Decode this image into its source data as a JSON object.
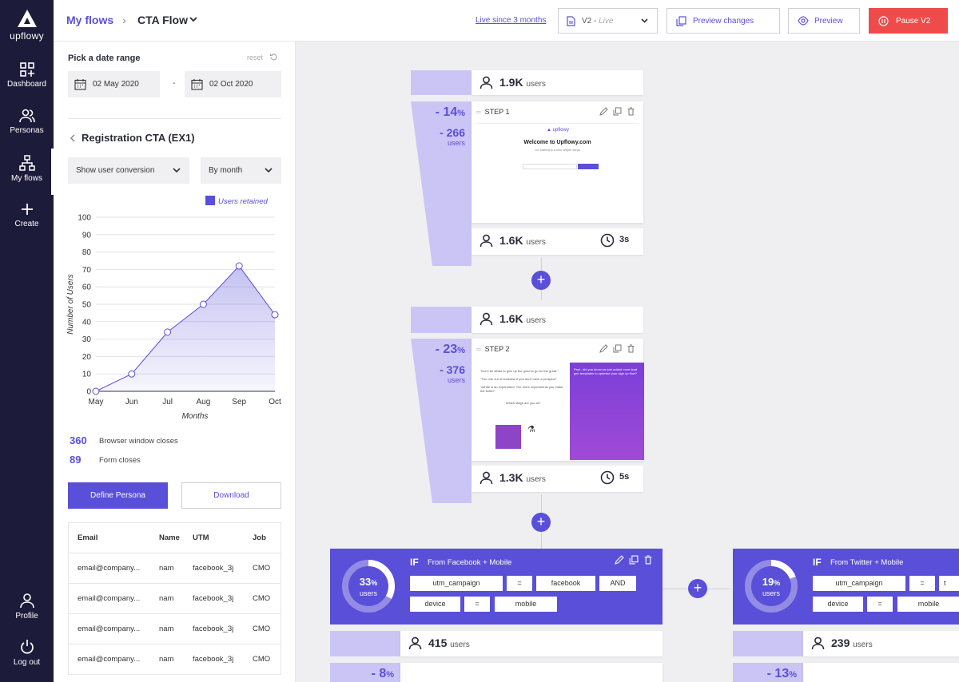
{
  "sidebar": {
    "logo": "upflowy",
    "items": [
      {
        "label": "Dashboard"
      },
      {
        "label": "Personas"
      },
      {
        "label": "My flows"
      },
      {
        "label": "Create"
      }
    ],
    "bottom": [
      {
        "label": "Profile"
      },
      {
        "label": "Log out"
      }
    ]
  },
  "topbar": {
    "breadcrumb_root": "My flows",
    "breadcrumb_current": "CTA Flow",
    "live_since": "Live since 3 months",
    "version": "V2",
    "version_status": "Live",
    "preview_changes": "Preview changes",
    "preview": "Preview",
    "pause": "Pause V2"
  },
  "panel": {
    "range_title": "Pick a date range",
    "reset": "reset",
    "date_from": "02 May 2020",
    "date_to": "02 Oct 2020",
    "title": "Registration CTA (EX1)",
    "metric_select": "Show user conversion",
    "period_select": "By month",
    "legend": "Users retained",
    "stats": [
      {
        "value": "360",
        "label": "Browser window closes"
      },
      {
        "value": "89",
        "label": "Form closes"
      }
    ],
    "define_persona": "Define Persona",
    "download": "Download",
    "table": {
      "headers": [
        "Email",
        "Name",
        "UTM",
        "Job"
      ],
      "rows": [
        [
          "email@company...",
          "nam",
          "facebook_3j",
          "CMO"
        ],
        [
          "email@company...",
          "nam",
          "facebook_3j",
          "CMO"
        ],
        [
          "email@company...",
          "nam",
          "facebook_3j",
          "CMO"
        ],
        [
          "email@company...",
          "nam",
          "facebook_3j",
          "CMO"
        ]
      ]
    }
  },
  "chart_data": {
    "type": "area",
    "categories": [
      "May",
      "Jun",
      "Jul",
      "Aug",
      "Sep",
      "Oct"
    ],
    "series": [
      {
        "name": "Users retained",
        "values": [
          0,
          10,
          34,
          50,
          72,
          44
        ]
      }
    ],
    "xlabel": "Months",
    "ylabel": "Number of Users",
    "ylim": [
      0,
      100
    ],
    "yticks": [
      0,
      10,
      20,
      30,
      40,
      50,
      60,
      70,
      80,
      90,
      100
    ],
    "grid": true,
    "legend": "top-right",
    "color": "#5a4fd8"
  },
  "flow": {
    "entry_users": "1.9K",
    "users_unit": "users",
    "steps": [
      {
        "label": "STEP 1",
        "drop_pct": "- 14",
        "drop_n": "- 266",
        "drop_unit": "users",
        "after_users": "1.6K",
        "time": "3s",
        "preview_brand": "upflowy",
        "preview_title": "Welcome to Upflowy.com",
        "preview_sub": "Let started is a few simple steps"
      },
      {
        "label": "STEP 2",
        "drop_pct": "- 23",
        "drop_n": "- 376",
        "drop_unit": "users",
        "before_users": "1.6K",
        "after_users": "1.3K",
        "time": "5s",
        "preview_quotes": [
          "\"Don't be afraid to give up the good to go for the great.\"",
          "\"The one out of business if you don't have a prospect\"",
          "\"All life is an experiment. The more experiments you make, the better.\""
        ],
        "preview_question": "Which stage are you at?",
        "preview_side": "Psst.. did you know we just added more lead gen templates to optimise your sign up flow?"
      }
    ],
    "branches": [
      {
        "if": "IF",
        "title": "From Facebook + Mobile",
        "pct": "33",
        "pct_unit": "users",
        "ring_value": 0.33,
        "tags": [
          "utm_campaign",
          "=",
          "facebook",
          "AND",
          "device",
          "=",
          "mobile"
        ],
        "users": "415",
        "drop_pct": "- 8"
      },
      {
        "if": "IF",
        "title": "From Twitter + Mobile",
        "pct": "19",
        "pct_unit": "users",
        "ring_value": 0.19,
        "tags": [
          "utm_campaign",
          "=",
          "t",
          "device",
          "=",
          "mobile"
        ],
        "users": "239",
        "drop_pct": "- 13"
      }
    ],
    "percent_sign": "%"
  }
}
